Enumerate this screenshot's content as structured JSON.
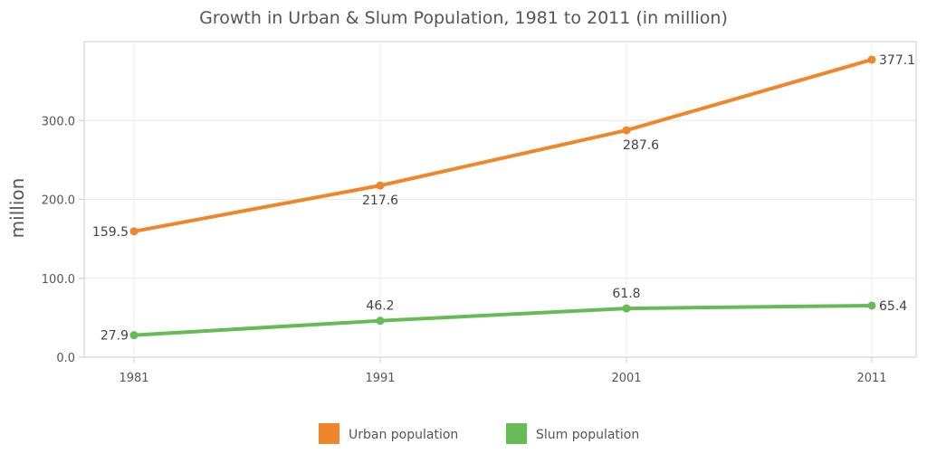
{
  "chart_data": {
    "type": "line",
    "title": "Growth in Urban & Slum Population, 1981 to 2011 (in million)",
    "xlabel": "",
    "ylabel": "million",
    "categories": [
      "1981",
      "1991",
      "2001",
      "2011"
    ],
    "yticks": [
      "0.0",
      "100.0",
      "200.0",
      "300.0"
    ],
    "ytick_values": [
      0,
      100,
      200,
      300
    ],
    "ylim": [
      0,
      400
    ],
    "grid": true,
    "legend_position": "bottom",
    "series": [
      {
        "name": "Urban population",
        "values": [
          159.5,
          217.6,
          287.6,
          377.1
        ],
        "labels": [
          "159.5",
          "217.6",
          "287.6",
          "377.1"
        ],
        "color": "#f0862a"
      },
      {
        "name": "Slum population",
        "values": [
          27.9,
          46.2,
          61.8,
          65.4
        ],
        "labels": [
          "27.9",
          "46.2",
          "61.8",
          "65.4"
        ],
        "color": "#66bb55"
      }
    ]
  }
}
